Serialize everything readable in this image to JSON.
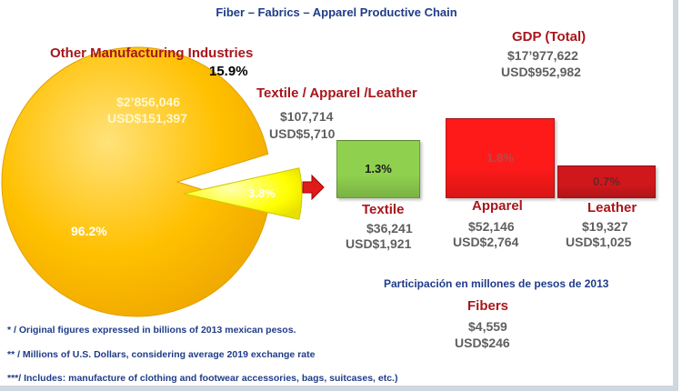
{
  "title": "Fiber – Fabrics – Apparel Productive Chain",
  "gdp": {
    "label": "GDP (Total)",
    "value_mxn": "$17’977,622",
    "value_usd": "USD$952,982"
  },
  "other_manufacturing": {
    "label": "Other Manufacturing Industries",
    "pct_label": "15.9%",
    "value_mxn": "$2’856,046",
    "value_usd": "USD$151,397",
    "share_label": "96.2%"
  },
  "textile_apparel_leather": {
    "label": "Textile / Apparel /Leather",
    "value_mxn": "$107,714",
    "value_usd": "USD$5,710",
    "share_label": "3.8%"
  },
  "subsectors": [
    {
      "name": "Textile",
      "pct": 1.3,
      "pct_label": "1.3%",
      "value_mxn": "$36,241",
      "value_usd": "USD$1,921",
      "color": "#8fd14f"
    },
    {
      "name": "Apparel",
      "pct": 1.8,
      "pct_label": "1.8%",
      "value_mxn": "$52,146",
      "value_usd": "USD$2,764",
      "color": "#ff1a1a"
    },
    {
      "name": "Leather",
      "pct": 0.7,
      "pct_label": "0.7%",
      "value_mxn": "$19,327",
      "value_usd": "USD$1,025",
      "color": "#d0181c"
    }
  ],
  "participation_note": "Participación en millones de pesos de 2013",
  "fibers": {
    "label": "Fibers",
    "value_mxn": "$4,559",
    "value_usd": "USD$246"
  },
  "footnotes": [
    "* / Original figures expressed in billions of 2013 mexican pesos.",
    "** / Millions of U.S. Dollars, considering average 2019 exchange rate",
    "***/ Includes: manufacture of clothing and footwear accessories, bags, suitcases, etc.)"
  ],
  "chart_data": {
    "type": "pie",
    "categories": [
      "Other Manufacturing Industries",
      "Textile / Apparel /Leather"
    ],
    "values": [
      96.2,
      3.8
    ],
    "slice_labels": [
      "96.2%",
      "3.8%"
    ],
    "colors": [
      "#ffc000",
      "#ffff00"
    ],
    "breakdown": {
      "type": "bar",
      "categories": [
        "Textile",
        "Apparel",
        "Leather"
      ],
      "values": [
        1.3,
        1.8,
        0.7
      ]
    }
  }
}
